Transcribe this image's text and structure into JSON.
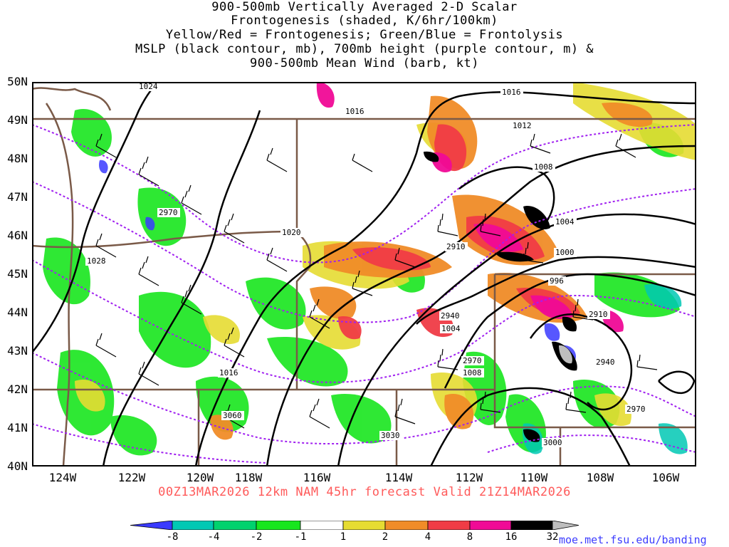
{
  "titles": [
    "900-500mb Vertically Averaged 2-D Scalar",
    "Frontogenesis (shaded, K/6hr/100km)",
    "Yellow/Red = Frontogenesis;  Green/Blue = Frontolysis",
    "MSLP (black contour, mb), 700mb height (purple contour, m) &",
    "900-500mb Mean Wind (barb, kt)"
  ],
  "lat_labels": [
    "50N",
    "49N",
    "48N",
    "47N",
    "46N",
    "45N",
    "44N",
    "43N",
    "42N",
    "41N",
    "40N"
  ],
  "lon_labels": [
    "124W",
    "122W",
    "120W",
    "118W",
    "116W",
    "114W",
    "112W",
    "110W",
    "108W",
    "106W"
  ],
  "valid_text": "00Z13MAR2026 12km NAM 45hr forecast Valid 21Z14MAR2026",
  "colorbar": {
    "labels": [
      "-8",
      "-4",
      "-2",
      "-1",
      "1",
      "2",
      "4",
      "8",
      "16",
      "32"
    ],
    "colors": [
      "#3a3aff",
      "#00c8b4",
      "#00d26e",
      "#18e61e",
      "#ffffff",
      "#e6dc32",
      "#f08c28",
      "#f03c46",
      "#f00a96",
      "#000000",
      "#bebebe"
    ]
  },
  "mslp_labels": [
    "1024",
    "1016",
    "1016",
    "1012",
    "1008",
    "1004",
    "1000",
    "996",
    "1004",
    "1008",
    "1016",
    "1020",
    "1028"
  ],
  "height_labels": [
    "2970",
    "2910",
    "2940",
    "2910",
    "2970",
    "2940",
    "2970",
    "3000",
    "3030",
    "3060"
  ],
  "credit": "moe.met.fsu.edu/banding"
}
